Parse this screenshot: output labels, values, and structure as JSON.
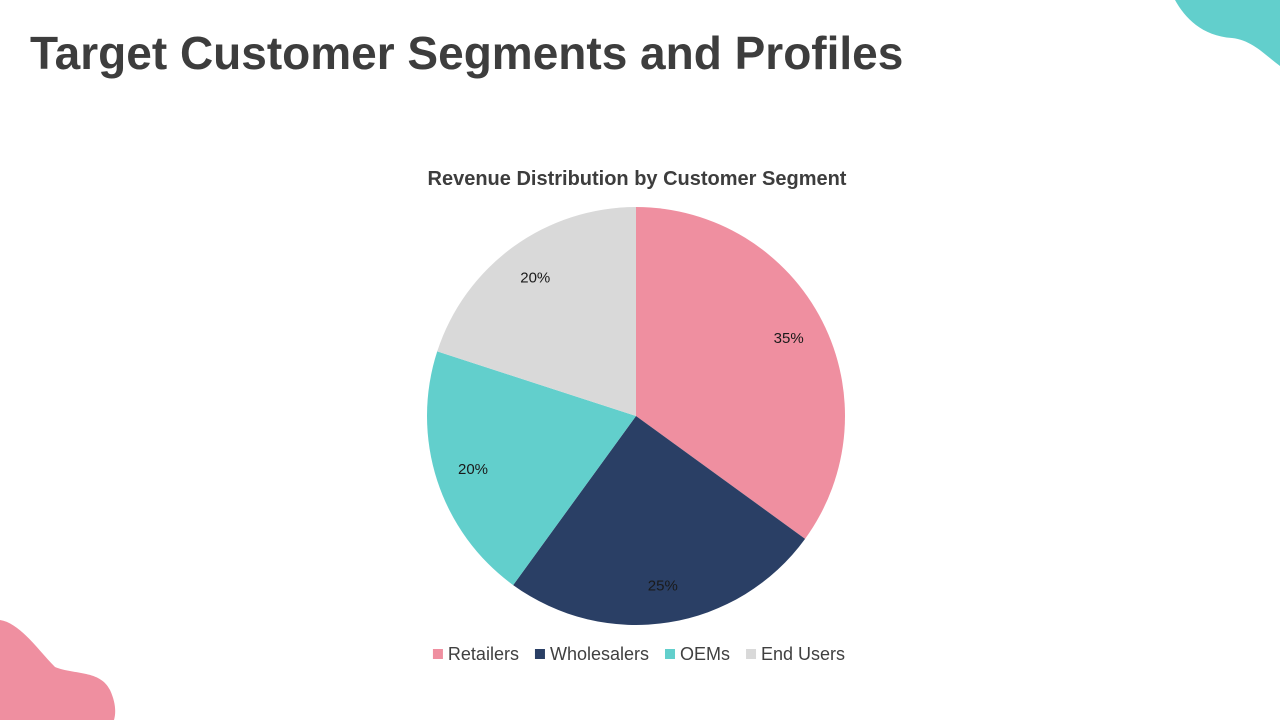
{
  "slide": {
    "title": "Target Customer Segments and Profiles"
  },
  "colors": {
    "accent_teal": "#62cfcc",
    "accent_pink": "#ef8fa0",
    "title_text": "#3d3d3d"
  },
  "chart_data": {
    "type": "pie",
    "title": "Revenue Distribution by Customer Segment",
    "categories": [
      "Retailers",
      "Wholesalers",
      "OEMs",
      "End Users"
    ],
    "values": [
      35,
      25,
      20,
      20
    ],
    "data_labels": [
      "35%",
      "25%",
      "20%",
      "20%"
    ],
    "colors": [
      "#ef8fa0",
      "#2a3f65",
      "#62cfcc",
      "#d9d9d9"
    ],
    "start_angle_deg": 0,
    "direction": "clockwise",
    "legend_position": "bottom"
  }
}
